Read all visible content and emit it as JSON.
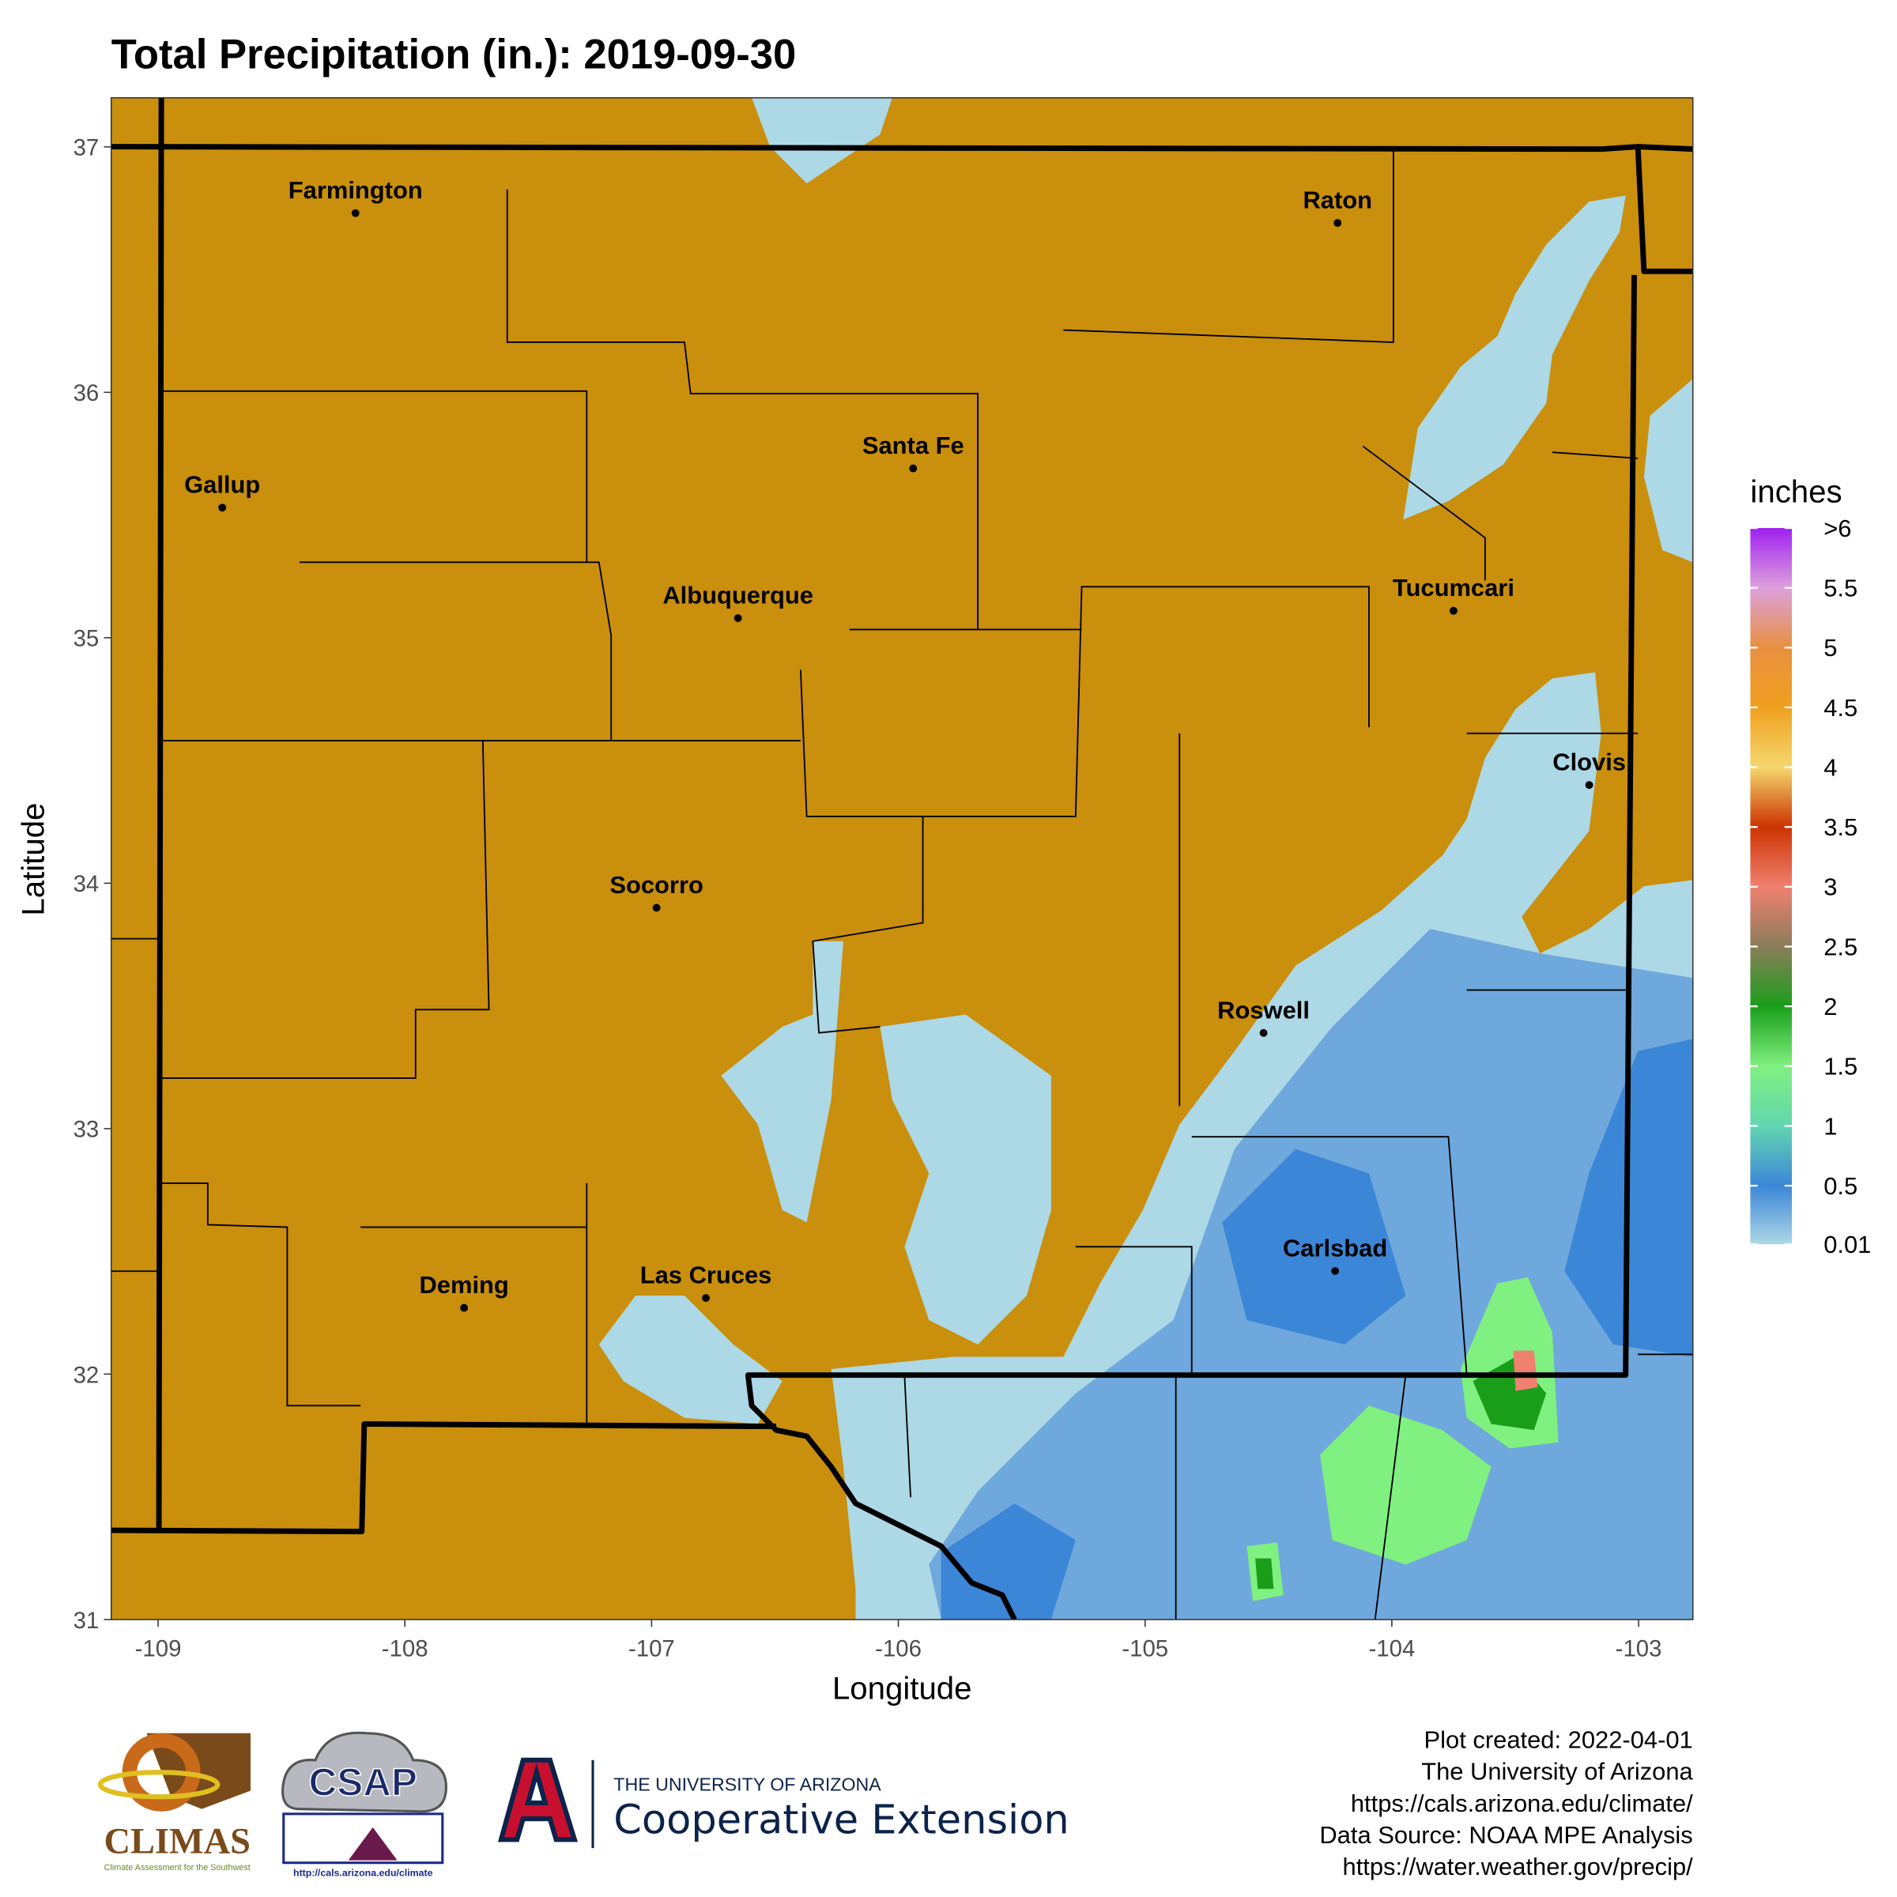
{
  "chart_data": {
    "type": "map",
    "title": "Total Precipitation (in.): 2019-09-30",
    "x_label": "Longitude",
    "y_label": "Latitude",
    "xlim": [
      -109.19,
      -102.78
    ],
    "ylim": [
      31,
      37.2
    ],
    "xticks": [
      -109,
      -108,
      -107,
      -106,
      -105,
      -104,
      -103
    ],
    "yticks": [
      31,
      32,
      33,
      34,
      35,
      36,
      37
    ],
    "background_color": "#c98f0d",
    "cities": [
      {
        "name": "Farmington",
        "lon": -108.2,
        "lat": 36.73
      },
      {
        "name": "Raton",
        "lon": -104.22,
        "lat": 36.69
      },
      {
        "name": "Gallup",
        "lon": -108.74,
        "lat": 35.53
      },
      {
        "name": "Santa Fe",
        "lon": -105.94,
        "lat": 35.69
      },
      {
        "name": "Albuquerque",
        "lon": -106.65,
        "lat": 35.08
      },
      {
        "name": "Tucumcari",
        "lon": -103.75,
        "lat": 35.11
      },
      {
        "name": "Clovis",
        "lon": -103.2,
        "lat": 34.4
      },
      {
        "name": "Socorro",
        "lon": -106.98,
        "lat": 33.9
      },
      {
        "name": "Roswell",
        "lon": -104.52,
        "lat": 33.39
      },
      {
        "name": "Carlsbad",
        "lon": -104.23,
        "lat": 32.42
      },
      {
        "name": "Deming",
        "lon": -107.76,
        "lat": 32.27
      },
      {
        "name": "Las Cruces",
        "lon": -106.78,
        "lat": 32.31
      }
    ],
    "legend": {
      "title": "inches",
      "lim": [
        0.01,
        6
      ],
      "ticks": [
        0.01,
        0.5,
        1,
        1.5,
        2,
        2.5,
        3,
        3.5,
        4,
        4.5,
        5,
        5.5,
        {
          "value": 6,
          "label": ">6"
        }
      ],
      "colors": [
        "#add8e6",
        "#3c86d8",
        "#62d6b0",
        "#80f080",
        "#1a9e1a",
        "#8b7d5a",
        "#f08070",
        "#cc3300",
        "#f5d76e",
        "#f0a020",
        "#e89040",
        "#dda0dd",
        "#a020f0"
      ]
    }
  },
  "footer": [
    "Plot created: 2022-04-01",
    "The University of Arizona",
    "https://cals.arizona.edu/climate/",
    "Data Source: NOAA MPE Analysis",
    "https://water.weather.gov/precip/"
  ],
  "logos": {
    "climas": "CLIMAS",
    "climas_sub": "Climate Assessment for the Southwest",
    "csap": "CSAP",
    "csap_url": "http://cals.arizona.edu/climate",
    "ua_top": "THE UNIVERSITY OF ARIZONA",
    "ua_main": "Cooperative Extension"
  }
}
